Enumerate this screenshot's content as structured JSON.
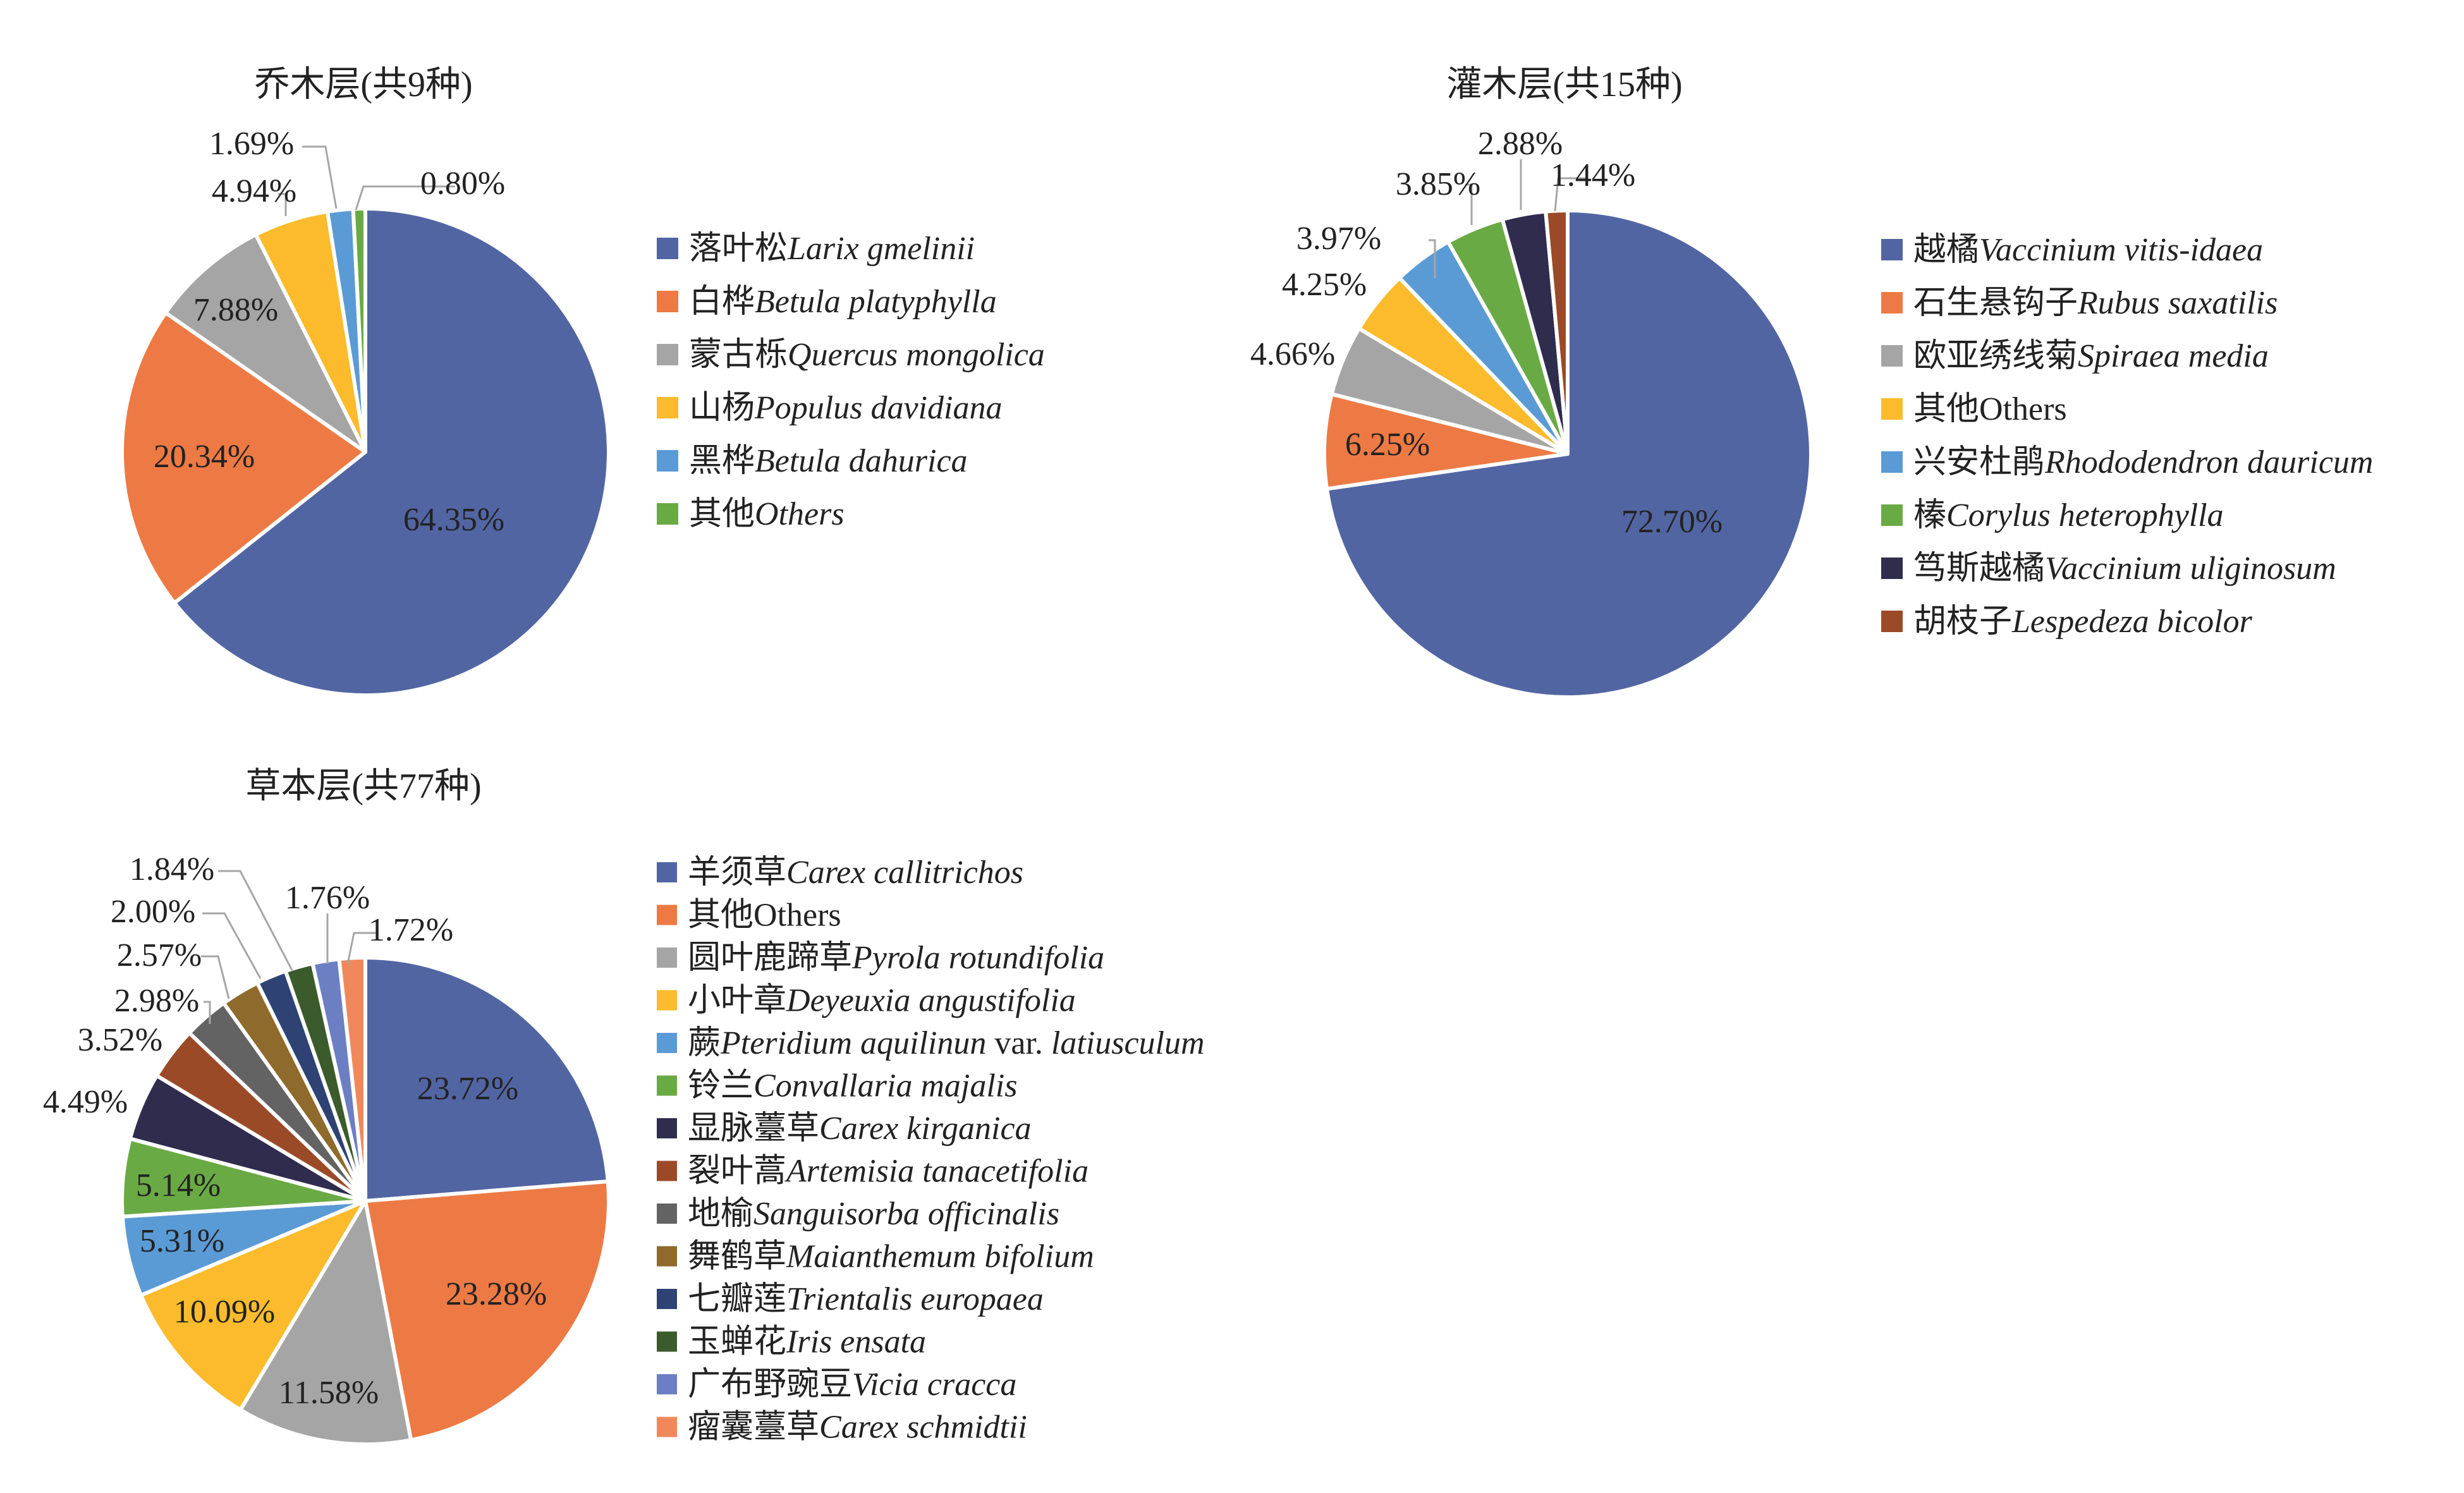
{
  "chart_data": [
    {
      "type": "pie",
      "title": "乔木层(共9种)",
      "series": [
        {
          "cn": "落叶松",
          "latin": "Larix gmelinii",
          "value": 64.35,
          "label": "64.35%",
          "color": "#5265A3"
        },
        {
          "cn": "白桦",
          "latin": "Betula platyphylla",
          "value": 20.34,
          "label": "20.34%",
          "color": "#ED7A44"
        },
        {
          "cn": "蒙古栎",
          "latin": "Quercus mongolica",
          "value": 7.88,
          "label": "7.88%",
          "color": "#A5A5A5"
        },
        {
          "cn": "山杨",
          "latin": "Populus davidiana",
          "value": 4.94,
          "label": "4.94%",
          "color": "#FBBB2C"
        },
        {
          "cn": "黑桦",
          "latin": "Betula dahurica",
          "value": 1.69,
          "label": "1.69%",
          "color": "#5B9BD5"
        },
        {
          "cn": "其他",
          "latin": "Others",
          "value": 0.8,
          "label": "0.80%",
          "color": "#6AAA45"
        }
      ]
    },
    {
      "type": "pie",
      "title": "灌木层(共15种)",
      "series": [
        {
          "cn": "越橘",
          "latin": "Vaccinium vitis-idaea",
          "value": 72.7,
          "label": "72.70%",
          "color": "#5265A3"
        },
        {
          "cn": "石生悬钩子",
          "latin": "Rubus saxatilis",
          "value": 6.25,
          "label": "6.25%",
          "color": "#ED7A44"
        },
        {
          "cn": "欧亚绣线菊",
          "latin": "Spiraea media",
          "value": 4.66,
          "label": "4.66%",
          "color": "#A5A5A5"
        },
        {
          "cn": "其他",
          "latin": "Others",
          "value": 4.25,
          "label": "4.25%",
          "color": "#FBBB2C",
          "plain": true
        },
        {
          "cn": "兴安杜鹃",
          "latin": "Rhododendron dauricum",
          "value": 3.97,
          "label": "3.97%",
          "color": "#5B9BD5"
        },
        {
          "cn": "榛",
          "latin": "Corylus heterophylla",
          "value": 3.85,
          "label": "3.85%",
          "color": "#6AAA45"
        },
        {
          "cn": "笃斯越橘",
          "latin": "Vaccinium uliginosum",
          "value": 2.88,
          "label": "2.88%",
          "color": "#2F2C4E"
        },
        {
          "cn": "胡枝子",
          "latin": "Lespedeza bicolor",
          "value": 1.44,
          "label": "1.44%",
          "color": "#9B4A28"
        }
      ]
    },
    {
      "type": "pie",
      "title": "草本层(共77种)",
      "series": [
        {
          "cn": "羊须草",
          "latin": "Carex callitrichos",
          "value": 23.72,
          "label": "23.72%",
          "color": "#5265A3"
        },
        {
          "cn": "其他",
          "latin": "Others",
          "value": 23.28,
          "label": "23.28%",
          "color": "#ED7A44",
          "plain": true
        },
        {
          "cn": "圆叶鹿蹄草",
          "latin": "Pyrola rotundifolia",
          "value": 11.58,
          "label": "11.58%",
          "color": "#A5A5A5"
        },
        {
          "cn": "小叶章",
          "latin": "Deyeuxia angustifolia",
          "value": 10.09,
          "label": "10.09%",
          "color": "#FBBB2C"
        },
        {
          "cn": "蕨",
          "latin": "Pteridium aquilinun",
          "extra": " var. ",
          "latin2": "latiusculum",
          "value": 5.31,
          "label": "5.31%",
          "color": "#5B9BD5"
        },
        {
          "cn": "铃兰",
          "latin": "Convallaria majalis",
          "value": 5.14,
          "label": "5.14%",
          "color": "#6AAA45"
        },
        {
          "cn": "显脉薹草",
          "latin": "Carex kirganica",
          "value": 4.49,
          "label": "4.49%",
          "color": "#2F2C4E"
        },
        {
          "cn": "裂叶蒿",
          "latin": "Artemisia tanacetifolia",
          "value": 3.52,
          "label": "3.52%",
          "color": "#9B4A28"
        },
        {
          "cn": "地榆",
          "latin": "Sanguisorba officinalis",
          "value": 2.98,
          "label": "2.98%",
          "color": "#636363"
        },
        {
          "cn": "舞鹤草",
          "latin": "Maianthemum bifolium",
          "value": 2.57,
          "label": "2.57%",
          "color": "#8E6A2C"
        },
        {
          "cn": "七瓣莲",
          "latin": "Trientalis europaea",
          "value": 2.0,
          "label": "2.00%",
          "color": "#2E4374"
        },
        {
          "cn": "玉蝉花",
          "latin": "Iris ensata",
          "value": 1.84,
          "label": "1.84%",
          "color": "#3C5B2C"
        },
        {
          "cn": "广布野豌豆",
          "latin": "Vicia cracca",
          "value": 1.76,
          "label": "1.76%",
          "color": "#6C7FC3"
        },
        {
          "cn": "瘤囊薹草",
          "latin": "Carex schmidtii",
          "value": 1.72,
          "label": "1.72%",
          "color": "#F0885C"
        }
      ]
    }
  ]
}
